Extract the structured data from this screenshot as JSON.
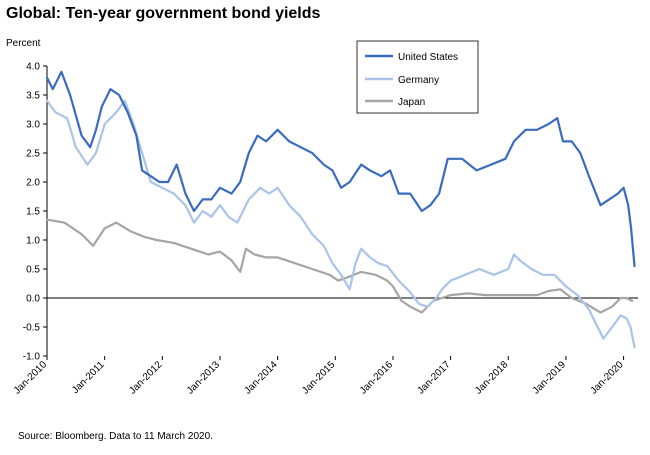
{
  "chart_data": {
    "type": "line",
    "title": "Global: Ten-year government bond yields",
    "ylabel": "Percent",
    "ylim": [
      -1.0,
      4.0
    ],
    "yticks": [
      "-1.0",
      "-0.5",
      "0.0",
      "0.5",
      "1.0",
      "1.5",
      "2.0",
      "2.5",
      "3.0",
      "3.5",
      "4.0"
    ],
    "xlim": [
      2010.0,
      2020.25
    ],
    "xticks": [
      "Jan-2010",
      "Jan-2011",
      "Jan-2012",
      "Jan-2013",
      "Jan-2014",
      "Jan-2015",
      "Jan-2016",
      "Jan-2017",
      "Jan-2018",
      "Jan-2019",
      "Jan-2020"
    ],
    "grid": false,
    "legend_position": "top-right",
    "series": [
      {
        "name": "United States",
        "color": "#3a6bbf",
        "x": [
          2010.0,
          2010.1,
          2010.25,
          2010.4,
          2010.6,
          2010.75,
          2010.85,
          2010.95,
          2011.1,
          2011.25,
          2011.4,
          2011.55,
          2011.65,
          2011.8,
          2011.95,
          2012.1,
          2012.25,
          2012.4,
          2012.55,
          2012.7,
          2012.85,
          2013.0,
          2013.2,
          2013.35,
          2013.5,
          2013.65,
          2013.8,
          2014.0,
          2014.2,
          2014.4,
          2014.6,
          2014.8,
          2014.95,
          2015.1,
          2015.25,
          2015.45,
          2015.6,
          2015.8,
          2015.95,
          2016.1,
          2016.3,
          2016.5,
          2016.65,
          2016.8,
          2016.95,
          2017.2,
          2017.45,
          2017.7,
          2017.95,
          2018.1,
          2018.3,
          2018.5,
          2018.7,
          2018.85,
          2018.95,
          2019.1,
          2019.25,
          2019.4,
          2019.6,
          2019.75,
          2019.9,
          2020.0,
          2020.08,
          2020.13,
          2020.19
        ],
        "values": [
          3.8,
          3.6,
          3.9,
          3.5,
          2.8,
          2.6,
          2.9,
          3.3,
          3.6,
          3.5,
          3.2,
          2.8,
          2.2,
          2.1,
          2.0,
          2.0,
          2.3,
          1.8,
          1.5,
          1.7,
          1.7,
          1.9,
          1.8,
          2.0,
          2.5,
          2.8,
          2.7,
          2.9,
          2.7,
          2.6,
          2.5,
          2.3,
          2.2,
          1.9,
          2.0,
          2.3,
          2.2,
          2.1,
          2.2,
          1.8,
          1.8,
          1.5,
          1.6,
          1.8,
          2.4,
          2.4,
          2.2,
          2.3,
          2.4,
          2.7,
          2.9,
          2.9,
          3.0,
          3.1,
          2.7,
          2.7,
          2.5,
          2.1,
          1.6,
          1.7,
          1.8,
          1.9,
          1.6,
          1.2,
          0.55
        ]
      },
      {
        "name": "Germany",
        "color": "#a9c4e8",
        "x": [
          2010.0,
          2010.15,
          2010.35,
          2010.5,
          2010.7,
          2010.85,
          2011.0,
          2011.2,
          2011.35,
          2011.5,
          2011.65,
          2011.8,
          2012.0,
          2012.2,
          2012.4,
          2012.55,
          2012.7,
          2012.85,
          2013.0,
          2013.15,
          2013.3,
          2013.5,
          2013.7,
          2013.85,
          2014.0,
          2014.2,
          2014.4,
          2014.6,
          2014.8,
          2014.95,
          2015.1,
          2015.25,
          2015.35,
          2015.45,
          2015.6,
          2015.75,
          2015.9,
          2016.1,
          2016.3,
          2016.45,
          2016.6,
          2016.75,
          2016.85,
          2017.0,
          2017.25,
          2017.5,
          2017.75,
          2018.0,
          2018.1,
          2018.2,
          2018.4,
          2018.6,
          2018.8,
          2019.0,
          2019.2,
          2019.4,
          2019.55,
          2019.65,
          2019.8,
          2019.95,
          2020.05,
          2020.12,
          2020.19
        ],
        "values": [
          3.4,
          3.2,
          3.1,
          2.6,
          2.3,
          2.5,
          3.0,
          3.2,
          3.4,
          3.0,
          2.5,
          2.0,
          1.9,
          1.8,
          1.6,
          1.3,
          1.5,
          1.4,
          1.6,
          1.4,
          1.3,
          1.7,
          1.9,
          1.8,
          1.9,
          1.6,
          1.4,
          1.1,
          0.9,
          0.6,
          0.4,
          0.15,
          0.6,
          0.85,
          0.7,
          0.6,
          0.55,
          0.3,
          0.1,
          -0.1,
          -0.15,
          0.0,
          0.15,
          0.3,
          0.4,
          0.5,
          0.4,
          0.5,
          0.75,
          0.65,
          0.5,
          0.4,
          0.4,
          0.2,
          0.05,
          -0.2,
          -0.5,
          -0.7,
          -0.5,
          -0.3,
          -0.35,
          -0.5,
          -0.85
        ]
      },
      {
        "name": "Japan",
        "color": "#a5a5a5",
        "x": [
          2010.0,
          2010.3,
          2010.6,
          2010.8,
          2011.0,
          2011.2,
          2011.45,
          2011.7,
          2011.9,
          2012.2,
          2012.5,
          2012.8,
          2013.0,
          2013.2,
          2013.35,
          2013.45,
          2013.6,
          2013.8,
          2014.0,
          2014.3,
          2014.6,
          2014.9,
          2015.05,
          2015.2,
          2015.45,
          2015.7,
          2015.9,
          2016.0,
          2016.15,
          2016.3,
          2016.5,
          2016.7,
          2016.85,
          2017.0,
          2017.3,
          2017.6,
          2017.9,
          2018.2,
          2018.5,
          2018.7,
          2018.9,
          2019.1,
          2019.35,
          2019.6,
          2019.8,
          2019.95,
          2020.05,
          2020.15
        ],
        "values": [
          1.35,
          1.3,
          1.1,
          0.9,
          1.2,
          1.3,
          1.15,
          1.05,
          1.0,
          0.95,
          0.85,
          0.75,
          0.8,
          0.65,
          0.45,
          0.85,
          0.75,
          0.7,
          0.7,
          0.6,
          0.5,
          0.4,
          0.3,
          0.35,
          0.45,
          0.4,
          0.3,
          0.2,
          -0.05,
          -0.15,
          -0.25,
          -0.05,
          0.0,
          0.05,
          0.08,
          0.05,
          0.05,
          0.05,
          0.05,
          0.12,
          0.15,
          0.0,
          -0.1,
          -0.25,
          -0.15,
          0.0,
          0.0,
          -0.05
        ]
      }
    ],
    "source": "Source: Bloomberg. Data to 11 March 2020."
  }
}
